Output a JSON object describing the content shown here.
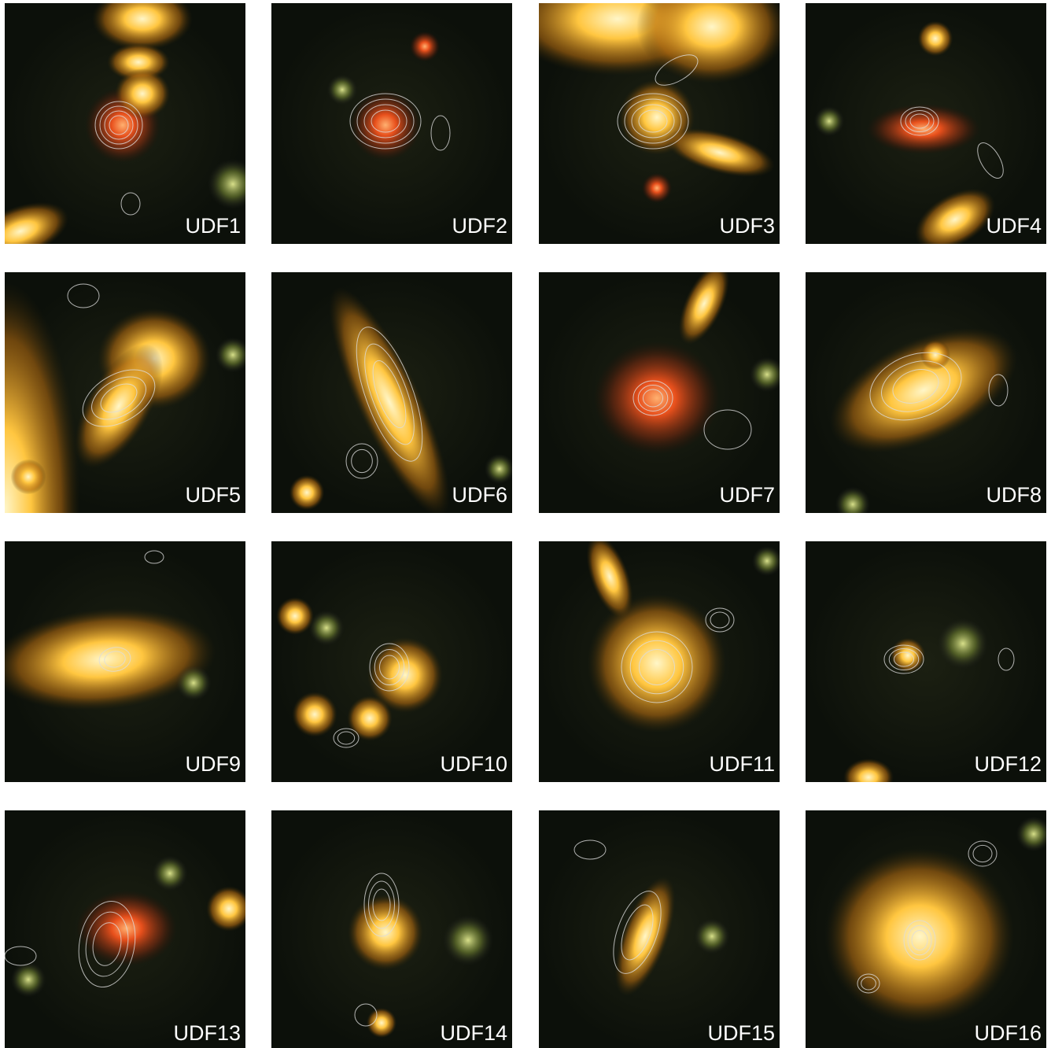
{
  "panels": [
    {
      "label": "UDF1"
    },
    {
      "label": "UDF2"
    },
    {
      "label": "UDF3"
    },
    {
      "label": "UDF4"
    },
    {
      "label": "UDF5"
    },
    {
      "label": "UDF6"
    },
    {
      "label": "UDF7"
    },
    {
      "label": "UDF8"
    },
    {
      "label": "UDF9"
    },
    {
      "label": "UDF10"
    },
    {
      "label": "UDF11"
    },
    {
      "label": "UDF12"
    },
    {
      "label": "UDF13"
    },
    {
      "label": "UDF14"
    },
    {
      "label": "UDF15"
    },
    {
      "label": "UDF16"
    }
  ]
}
